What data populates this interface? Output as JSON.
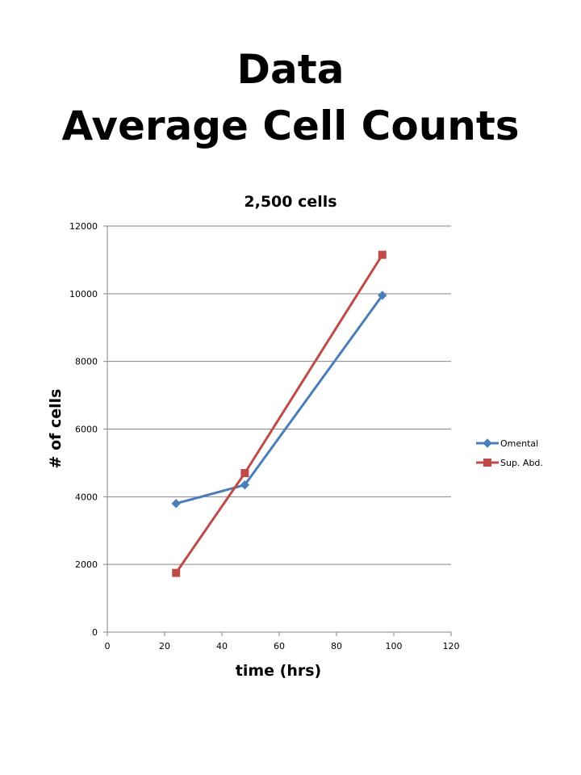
{
  "slide": {
    "title_line1": "Data",
    "title_line2": "Average Cell Counts"
  },
  "chart_data": {
    "type": "line",
    "title": "2,500 cells",
    "xlabel": "time (hrs)",
    "ylabel": "# of cells",
    "xlim": [
      0,
      120
    ],
    "ylim": [
      0,
      12000
    ],
    "x_ticks": [
      0,
      20,
      40,
      60,
      80,
      100,
      120
    ],
    "y_ticks": [
      0,
      2000,
      4000,
      6000,
      8000,
      10000,
      12000
    ],
    "grid": "horizontal",
    "legend_position": "right",
    "series": [
      {
        "name": "Omental",
        "color": "#4a7ebb",
        "marker": "diamond",
        "x": [
          24,
          48,
          96
        ],
        "y": [
          3800,
          4350,
          9950
        ]
      },
      {
        "name": "Sup. Abd.",
        "color": "#be4b48",
        "marker": "square",
        "x": [
          24,
          48,
          96
        ],
        "y": [
          1750,
          4700,
          11150
        ]
      }
    ]
  }
}
